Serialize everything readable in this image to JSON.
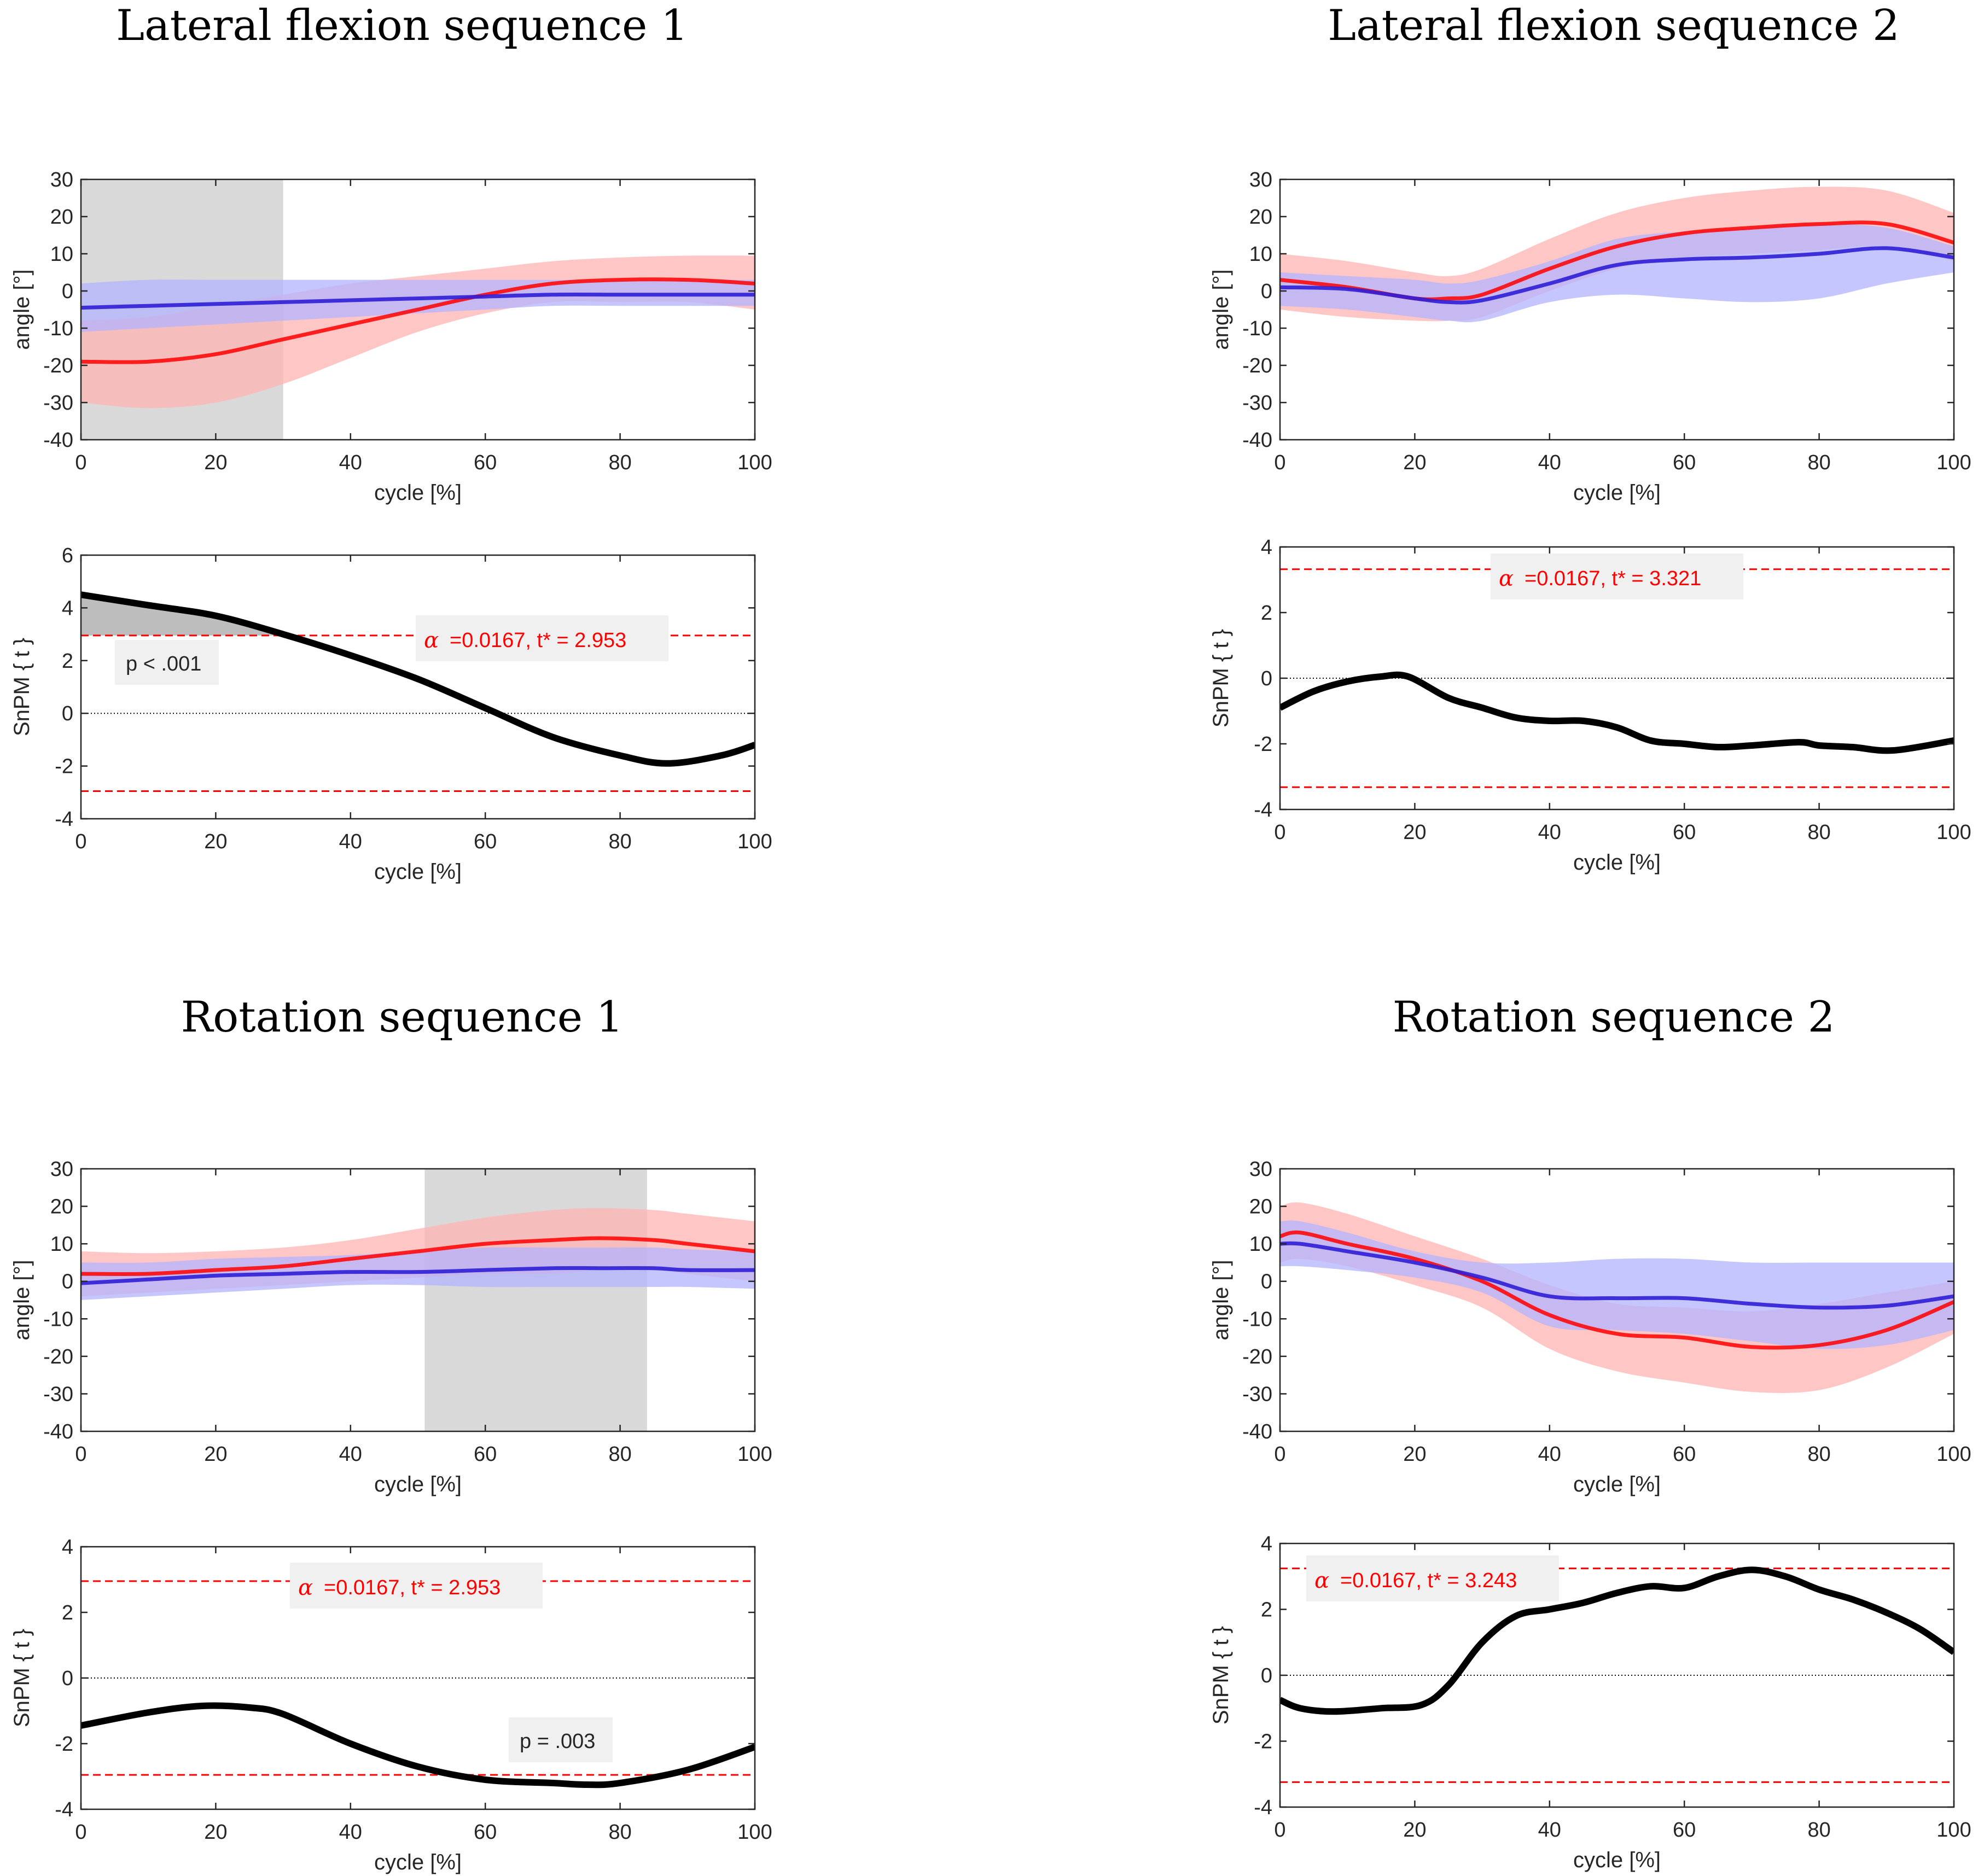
{
  "section_titles": {
    "lf1": "Lateral flexion sequence 1",
    "lf2": "Lateral flexion sequence 2",
    "rot1": "Rotation sequence 1",
    "rot2": "Rotation sequence 2"
  },
  "colors": {
    "group_red": "#ff0000",
    "group_red_band": "#ffb3b3",
    "group_blue": "#2e1fd6",
    "group_blue_band": "#b3b3ff",
    "spm_line": "#000000",
    "threshold": "#ff0000",
    "significance_region": "#d9d9d9"
  },
  "chart_data": [
    {
      "id": "lf1-angle",
      "type": "line",
      "xlabel": "cycle [%]",
      "ylabel": "angle [°]",
      "xlim": [
        0,
        100
      ],
      "ylim": [
        -40,
        30
      ],
      "xticks": [
        "0",
        "20",
        "40",
        "60",
        "80",
        "100"
      ],
      "yticks": [
        "-40",
        "-30",
        "-20",
        "-10",
        "0",
        "10",
        "20",
        "30"
      ],
      "shaded_region": [
        0,
        30
      ],
      "x": [
        0,
        10,
        20,
        30,
        40,
        50,
        60,
        70,
        80,
        90,
        100
      ],
      "series": [
        {
          "name": "red",
          "values": [
            -19,
            -19,
            -17,
            -13,
            -9,
            -5,
            -1,
            2,
            3,
            3,
            2
          ],
          "lower": [
            -30,
            -31.5,
            -30,
            -25,
            -18,
            -11,
            -6,
            -3,
            -3,
            -3,
            -5
          ],
          "upper": [
            -8,
            -7,
            -4,
            -1,
            2,
            4,
            6,
            8,
            9,
            9.5,
            9.5
          ]
        },
        {
          "name": "blue",
          "values": [
            -4.5,
            -4,
            -3.5,
            -3,
            -2.5,
            -2,
            -1.5,
            -1,
            -1,
            -1,
            -1
          ],
          "lower": [
            -11,
            -10,
            -9,
            -8,
            -7,
            -6,
            -5,
            -4,
            -4,
            -4,
            -4
          ],
          "upper": [
            2,
            3,
            3,
            3,
            3,
            3,
            3,
            3,
            3,
            3,
            3
          ]
        }
      ]
    },
    {
      "id": "lf1-spm",
      "type": "line",
      "xlabel": "cycle [%]",
      "ylabel": "SnPM { t }",
      "xlim": [
        0,
        100
      ],
      "ylim": [
        -4,
        6
      ],
      "xticks": [
        "0",
        "20",
        "40",
        "60",
        "80",
        "100"
      ],
      "yticks": [
        "-4",
        "-2",
        "0",
        "2",
        "4",
        "6"
      ],
      "threshold": 2.953,
      "threshold_label": {
        "alpha": "α",
        "text": "=0.0167,   t* = 2.953"
      },
      "cluster": [
        0,
        30
      ],
      "p_label": "p < .001",
      "x": [
        0,
        10,
        20,
        30,
        40,
        50,
        60,
        70,
        80,
        87,
        95,
        100
      ],
      "values": [
        4.5,
        4.1,
        3.7,
        3.0,
        2.2,
        1.3,
        0.2,
        -0.9,
        -1.6,
        -1.9,
        -1.6,
        -1.2
      ]
    },
    {
      "id": "lf2-angle",
      "type": "line",
      "xlabel": "cycle [%]",
      "ylabel": "angle [°]",
      "xlim": [
        0,
        100
      ],
      "ylim": [
        -40,
        30
      ],
      "xticks": [
        "0",
        "20",
        "40",
        "60",
        "80",
        "100"
      ],
      "yticks": [
        "-40",
        "-30",
        "-20",
        "-10",
        "0",
        "10",
        "20",
        "30"
      ],
      "x": [
        0,
        10,
        20,
        25,
        30,
        40,
        50,
        60,
        70,
        80,
        90,
        100
      ],
      "series": [
        {
          "name": "red",
          "values": [
            3,
            1,
            -2,
            -2,
            -1,
            6,
            12,
            15.5,
            17,
            18,
            18,
            13
          ],
          "lower": [
            -5,
            -7,
            -8,
            -8,
            -7,
            0,
            6,
            9,
            10,
            11,
            12,
            8
          ],
          "upper": [
            10,
            8,
            5,
            4,
            6,
            14,
            21,
            25,
            27,
            28,
            27,
            21
          ]
        },
        {
          "name": "blue",
          "values": [
            1,
            0.5,
            -2,
            -3,
            -2.5,
            2,
            7,
            8.5,
            9,
            10,
            11.5,
            9
          ],
          "lower": [
            -4,
            -5,
            -7,
            -8,
            -8,
            -3,
            -1,
            -2,
            -3,
            -2,
            2,
            5
          ],
          "upper": [
            5,
            4,
            3,
            2,
            3,
            8,
            14,
            16,
            17,
            18,
            17,
            12
          ]
        }
      ]
    },
    {
      "id": "lf2-spm",
      "type": "line",
      "xlabel": "cycle [%]",
      "ylabel": "SnPM { t }",
      "xlim": [
        0,
        100
      ],
      "ylim": [
        -4,
        4
      ],
      "xticks": [
        "0",
        "20",
        "40",
        "60",
        "80",
        "100"
      ],
      "yticks": [
        "-4",
        "-2",
        "0",
        "2",
        "4"
      ],
      "threshold": 3.321,
      "threshold_label": {
        "alpha": "α",
        "text": "=0.0167,   t* = 3.321"
      },
      "x": [
        0,
        5,
        10,
        15,
        19,
        25,
        30,
        35,
        40,
        45,
        50,
        55,
        60,
        65,
        70,
        77,
        80,
        85,
        91,
        100
      ],
      "values": [
        -0.9,
        -0.4,
        -0.1,
        0.05,
        0.05,
        -0.6,
        -0.9,
        -1.2,
        -1.3,
        -1.3,
        -1.5,
        -1.9,
        -2.0,
        -2.1,
        -2.05,
        -1.95,
        -2.05,
        -2.1,
        -2.2,
        -1.9
      ]
    },
    {
      "id": "rot1-angle",
      "type": "line",
      "xlabel": "cycle [%]",
      "ylabel": "angle [°]",
      "xlim": [
        0,
        100
      ],
      "ylim": [
        -40,
        30
      ],
      "xticks": [
        "0",
        "20",
        "40",
        "60",
        "80",
        "100"
      ],
      "yticks": [
        "-40",
        "-30",
        "-20",
        "-10",
        "0",
        "10",
        "20",
        "30"
      ],
      "shaded_region": [
        51,
        84
      ],
      "x": [
        0,
        10,
        20,
        30,
        40,
        50,
        60,
        70,
        77,
        85,
        90,
        100
      ],
      "series": [
        {
          "name": "red",
          "values": [
            2,
            2,
            3,
            4,
            6,
            8,
            10,
            11,
            11.5,
            11,
            10,
            8
          ],
          "lower": [
            -4,
            -3,
            -2,
            -1,
            0,
            1,
            2,
            2,
            3,
            3,
            2,
            0
          ],
          "upper": [
            8,
            7.5,
            8,
            9,
            11,
            14,
            17,
            19,
            19.5,
            19,
            18,
            16
          ]
        },
        {
          "name": "blue",
          "values": [
            -0.5,
            0.5,
            1.5,
            2,
            2.5,
            2.5,
            3,
            3.5,
            3.5,
            3.5,
            3,
            3
          ],
          "lower": [
            -5,
            -4,
            -3,
            -2,
            -1,
            -1,
            -1.5,
            -1.5,
            -1.5,
            -1.5,
            -1.5,
            -2
          ],
          "upper": [
            5,
            5,
            6,
            6.5,
            7,
            8,
            9,
            9,
            9,
            9,
            8.5,
            8
          ]
        }
      ]
    },
    {
      "id": "rot1-spm",
      "type": "line",
      "xlabel": "cycle [%]",
      "ylabel": "SnPM { t }",
      "xlim": [
        0,
        100
      ],
      "ylim": [
        -4,
        4
      ],
      "xticks": [
        "0",
        "20",
        "40",
        "60",
        "80",
        "100"
      ],
      "yticks": [
        "-4",
        "-2",
        "0",
        "2",
        "4"
      ],
      "threshold": 2.953,
      "threshold_label": {
        "alpha": "α",
        "text": "=0.0167,   t* = 2.953"
      },
      "p_label": "p = .003",
      "x": [
        0,
        10,
        18,
        25,
        30,
        40,
        50,
        60,
        70,
        75,
        80,
        90,
        100
      ],
      "values": [
        -1.45,
        -1.05,
        -0.85,
        -0.9,
        -1.1,
        -2.0,
        -2.7,
        -3.1,
        -3.2,
        -3.25,
        -3.2,
        -2.8,
        -2.1
      ]
    },
    {
      "id": "rot2-angle",
      "type": "line",
      "xlabel": "cycle [%]",
      "ylabel": "angle [°]",
      "xlim": [
        0,
        100
      ],
      "ylim": [
        -40,
        30
      ],
      "xticks": [
        "0",
        "20",
        "40",
        "60",
        "80",
        "100"
      ],
      "yticks": [
        "-40",
        "-30",
        "-20",
        "-10",
        "0",
        "10",
        "20",
        "30"
      ],
      "x": [
        0,
        3,
        10,
        20,
        30,
        40,
        50,
        60,
        70,
        80,
        90,
        100
      ],
      "series": [
        {
          "name": "red",
          "values": [
            12,
            13,
            10,
            6,
            0,
            -9,
            -14,
            -15,
            -17.5,
            -17,
            -13,
            -5.5
          ],
          "lower": [
            5,
            6,
            4,
            -1,
            -7,
            -18,
            -24,
            -27,
            -29.5,
            -29,
            -23,
            -14
          ],
          "upper": [
            20,
            21,
            18,
            12,
            6,
            -1,
            -6,
            -7,
            -8,
            -6,
            -3,
            0
          ]
        },
        {
          "name": "blue",
          "values": [
            10,
            10,
            8,
            5,
            1,
            -4,
            -4.5,
            -4.5,
            -6,
            -7,
            -6.5,
            -4
          ],
          "lower": [
            4,
            4,
            3,
            1,
            -3,
            -12,
            -13,
            -14,
            -16,
            -18,
            -17,
            -13
          ],
          "upper": [
            16,
            16,
            13,
            8,
            5,
            5,
            6,
            6,
            5,
            5,
            5,
            5
          ]
        }
      ]
    },
    {
      "id": "rot2-spm",
      "type": "line",
      "xlabel": "cycle [%]",
      "ylabel": "SnPM { t }",
      "xlim": [
        0,
        100
      ],
      "ylim": [
        -4,
        4
      ],
      "xticks": [
        "0",
        "20",
        "40",
        "60",
        "80",
        "100"
      ],
      "yticks": [
        "-4",
        "-2",
        "0",
        "2",
        "4"
      ],
      "threshold": 3.243,
      "threshold_label": {
        "alpha": "α",
        "text": "=0.0167,   t* = 3.243"
      },
      "x": [
        0,
        3,
        8,
        15,
        21,
        25,
        30,
        35,
        40,
        45,
        50,
        55,
        60,
        65,
        70,
        75,
        80,
        85,
        90,
        95,
        100
      ],
      "values": [
        -0.75,
        -1.0,
        -1.1,
        -1.0,
        -0.9,
        -0.3,
        1.0,
        1.8,
        2.0,
        2.2,
        2.5,
        2.7,
        2.65,
        3.0,
        3.2,
        3.0,
        2.6,
        2.3,
        1.9,
        1.4,
        0.7
      ]
    }
  ]
}
